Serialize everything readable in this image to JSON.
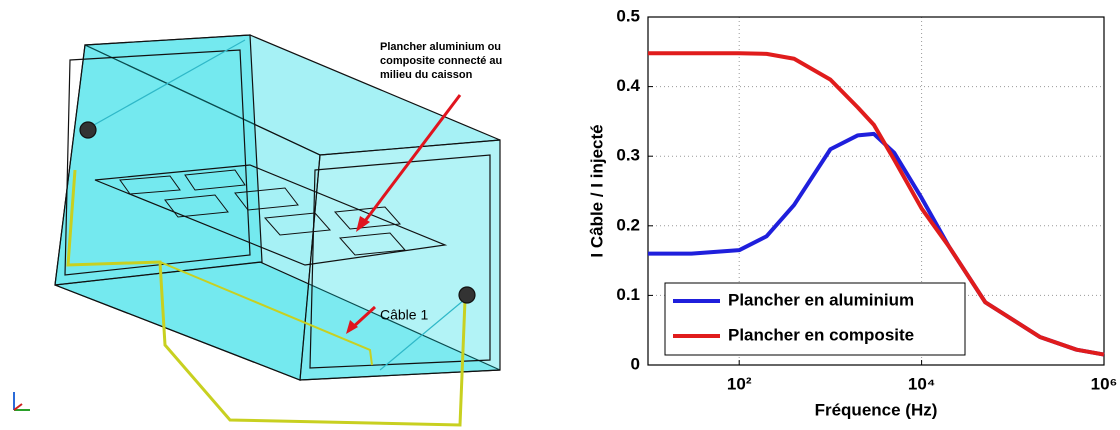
{
  "diagram": {
    "annotations": [
      "Plancher aluminium ou",
      "composite connecté au",
      "milieu du caisson"
    ],
    "cable_label": "Câble 1"
  },
  "chart_data": {
    "type": "line",
    "xlabel": "Fréquence (Hz)",
    "ylabel": "I Câble / I injecté",
    "x": [
      10,
      30,
      100,
      200,
      400,
      1000,
      2000,
      3000,
      5000,
      10000,
      20000,
      50000,
      200000,
      500000,
      1000000
    ],
    "series": [
      {
        "name": "Plancher en aluminium",
        "color": "#1f1fdc",
        "values": [
          0.16,
          0.16,
          0.165,
          0.185,
          0.23,
          0.31,
          0.33,
          0.332,
          0.305,
          0.24,
          0.17,
          0.09,
          0.04,
          0.022,
          0.015
        ]
      },
      {
        "name": "Plancher en composite",
        "color": "#e01c1c",
        "values": [
          0.448,
          0.448,
          0.448,
          0.447,
          0.44,
          0.41,
          0.37,
          0.345,
          0.295,
          0.225,
          0.17,
          0.09,
          0.04,
          0.022,
          0.015
        ]
      }
    ],
    "xscale": "log",
    "xlim": [
      10,
      1000000
    ],
    "xticks": [
      {
        "value": 100,
        "label": "10²"
      },
      {
        "value": 10000,
        "label": "10⁴"
      },
      {
        "value": 1000000,
        "label": "10⁶"
      }
    ],
    "ylim": [
      0,
      0.5
    ],
    "yticks": [
      0,
      0.1,
      0.2,
      0.3,
      0.4,
      0.5
    ],
    "grid": true,
    "legend": "lower left"
  }
}
